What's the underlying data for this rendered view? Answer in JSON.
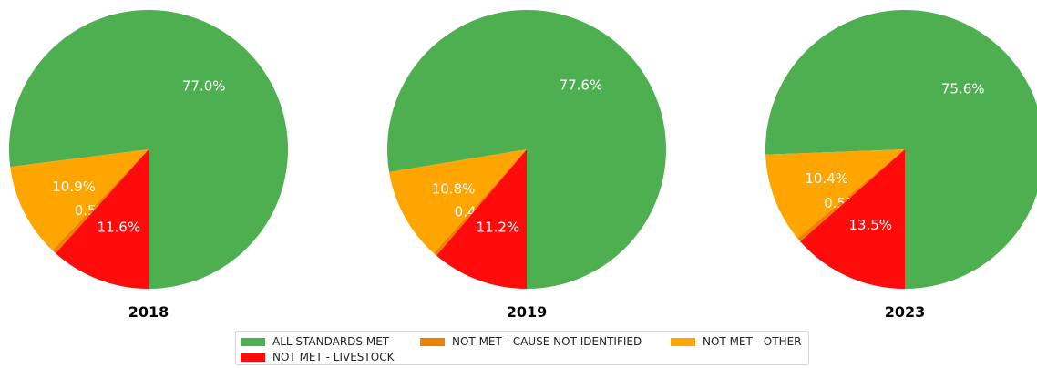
{
  "colors": {
    "all_met": "#4daf50",
    "cause_not_identified": "#f08000",
    "other": "#ffa500",
    "livestock": "#ff0b0b"
  },
  "legend": {
    "items": [
      {
        "key": "all_met",
        "label": "ALL STANDARDS MET"
      },
      {
        "key": "cause_not_identified",
        "label": "NOT MET - CAUSE NOT IDENTIFIED"
      },
      {
        "key": "other",
        "label": "NOT MET - OTHER"
      },
      {
        "key": "livestock",
        "label": "NOT MET - LIVESTOCK"
      }
    ]
  },
  "chart_data": [
    {
      "type": "pie",
      "title": "2018",
      "slices": [
        {
          "label": "ALL STANDARDS MET",
          "key": "all_met",
          "value": 77.0,
          "text": "77.0%"
        },
        {
          "label": "NOT MET - OTHER",
          "key": "other",
          "value": 10.9,
          "text": "10.9%"
        },
        {
          "label": "NOT MET - CAUSE NOT IDENTIFIED",
          "key": "cause_not_identified",
          "value": 0.5,
          "text": "0.5%"
        },
        {
          "label": "NOT MET - LIVESTOCK",
          "key": "livestock",
          "value": 11.6,
          "text": "11.6%"
        }
      ]
    },
    {
      "type": "pie",
      "title": "2019",
      "slices": [
        {
          "label": "ALL STANDARDS MET",
          "key": "all_met",
          "value": 77.6,
          "text": "77.6%"
        },
        {
          "label": "NOT MET - OTHER",
          "key": "other",
          "value": 10.8,
          "text": "10.8%"
        },
        {
          "label": "NOT MET - CAUSE NOT IDENTIFIED",
          "key": "cause_not_identified",
          "value": 0.4,
          "text": "0.4%"
        },
        {
          "label": "NOT MET - LIVESTOCK",
          "key": "livestock",
          "value": 11.2,
          "text": "11.2%"
        }
      ]
    },
    {
      "type": "pie",
      "title": "2023",
      "slices": [
        {
          "label": "ALL STANDARDS MET",
          "key": "all_met",
          "value": 75.6,
          "text": "75.6%"
        },
        {
          "label": "NOT MET - OTHER",
          "key": "other",
          "value": 10.4,
          "text": "10.4%"
        },
        {
          "label": "NOT MET - CAUSE NOT IDENTIFIED",
          "key": "cause_not_identified",
          "value": 0.5,
          "text": "0.5%"
        },
        {
          "label": "NOT MET - LIVESTOCK",
          "key": "livestock",
          "value": 13.5,
          "text": "13.5%"
        }
      ]
    }
  ]
}
